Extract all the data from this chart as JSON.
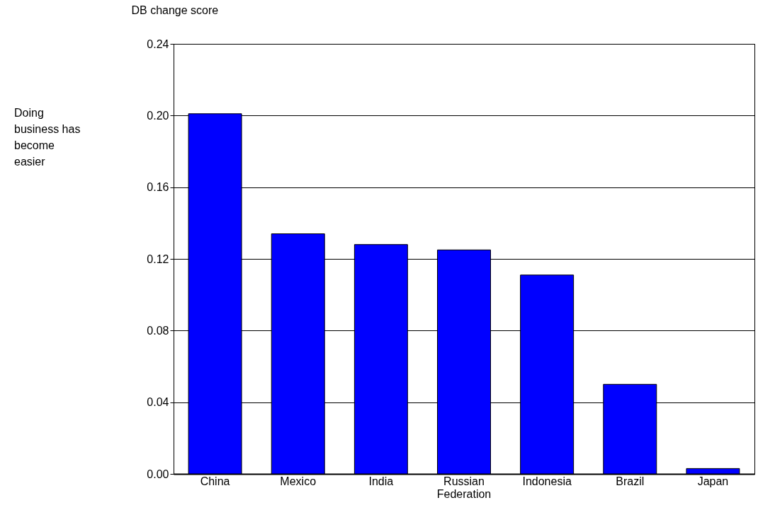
{
  "chart_data": {
    "type": "bar",
    "ylabel": "DB change score",
    "annotations": [
      "Doing business has become easier"
    ],
    "categories": [
      "China",
      "Mexico",
      "India",
      "Russian Federation",
      "Indonesia",
      "Brazil",
      "Japan"
    ],
    "values": [
      0.201,
      0.134,
      0.128,
      0.125,
      0.111,
      0.05,
      0.003
    ],
    "color": "#0000ff",
    "ylim": [
      0,
      0.24
    ],
    "yticks": [
      {
        "value": 0,
        "label": "0.00"
      },
      {
        "value": 0.04,
        "label": "0.04"
      },
      {
        "value": 0.08,
        "label": "0.08"
      },
      {
        "value": 0.12,
        "label": "0.12"
      },
      {
        "value": 0.16,
        "label": "0.16"
      },
      {
        "value": 0.2,
        "label": "0.20"
      },
      {
        "value": 0.24,
        "label": "0.24"
      }
    ],
    "grid": "y"
  }
}
